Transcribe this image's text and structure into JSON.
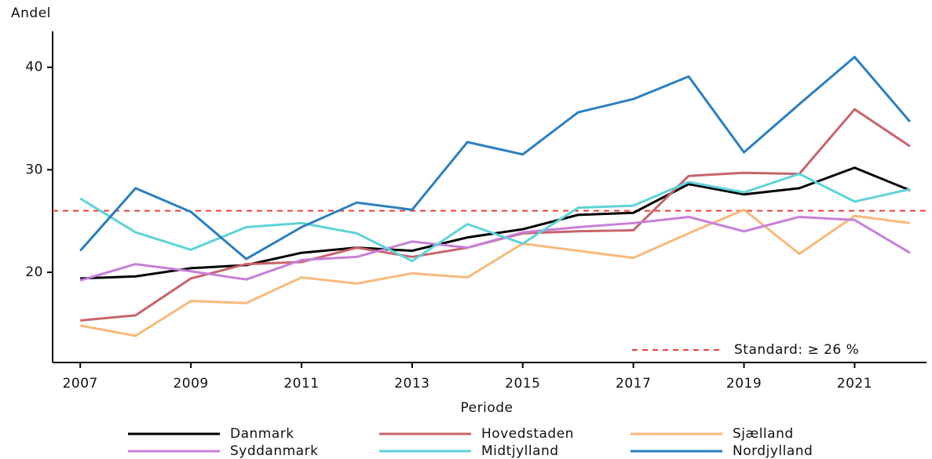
{
  "chart_data": {
    "type": "line",
    "y_label": "Andel",
    "x_label": "Periode",
    "x": [
      2007,
      2008,
      2009,
      2010,
      2011,
      2012,
      2013,
      2014,
      2015,
      2016,
      2017,
      2018,
      2019,
      2020,
      2021,
      2022
    ],
    "series": [
      {
        "name": "Danmark",
        "color": "#000000",
        "values": [
          19.4,
          19.6,
          20.4,
          20.7,
          21.9,
          22.4,
          22.1,
          23.4,
          24.2,
          25.6,
          25.8,
          28.6,
          27.6,
          28.2,
          30.2,
          28.0
        ]
      },
      {
        "name": "Hovedstaden",
        "color": "#c8636b",
        "values": [
          15.3,
          15.8,
          19.4,
          20.8,
          21.0,
          22.4,
          21.5,
          22.4,
          23.8,
          24.0,
          24.1,
          29.4,
          29.7,
          29.6,
          35.9,
          32.3
        ]
      },
      {
        "name": "Sjælland",
        "color": "#f9b97a",
        "values": [
          14.8,
          13.8,
          17.2,
          17.0,
          19.5,
          18.9,
          19.9,
          19.5,
          22.8,
          22.1,
          21.4,
          23.8,
          26.1,
          21.8,
          25.5,
          24.8
        ]
      },
      {
        "name": "Syddanmark",
        "color": "#c77fd8",
        "values": [
          19.2,
          20.8,
          20.1,
          19.3,
          21.2,
          21.5,
          23.0,
          22.4,
          23.9,
          24.4,
          24.8,
          25.4,
          24.0,
          25.4,
          25.1,
          21.9
        ]
      },
      {
        "name": "Midtjylland",
        "color": "#5ed3d8",
        "values": [
          27.2,
          23.9,
          22.2,
          24.4,
          24.8,
          23.8,
          21.1,
          24.7,
          22.8,
          26.3,
          26.5,
          28.8,
          27.8,
          29.6,
          26.9,
          28.1
        ]
      },
      {
        "name": "Nordjylland",
        "color": "#2a7fc0",
        "values": [
          22.1,
          28.2,
          25.9,
          21.3,
          24.4,
          26.8,
          26.1,
          32.7,
          31.5,
          35.6,
          36.9,
          39.1,
          31.7,
          36.4,
          41.0,
          34.7
        ]
      }
    ],
    "reference": {
      "value": 26,
      "label": "Standard: ≥ 26 %",
      "color": "#f03c3c"
    },
    "xlim": [
      2006.5,
      2022.3
    ],
    "xticks": [
      2007,
      2009,
      2011,
      2013,
      2015,
      2017,
      2019,
      2021
    ],
    "ylim": [
      11.2,
      43.5
    ],
    "yticks": [
      20,
      30,
      40
    ],
    "grid": false
  }
}
